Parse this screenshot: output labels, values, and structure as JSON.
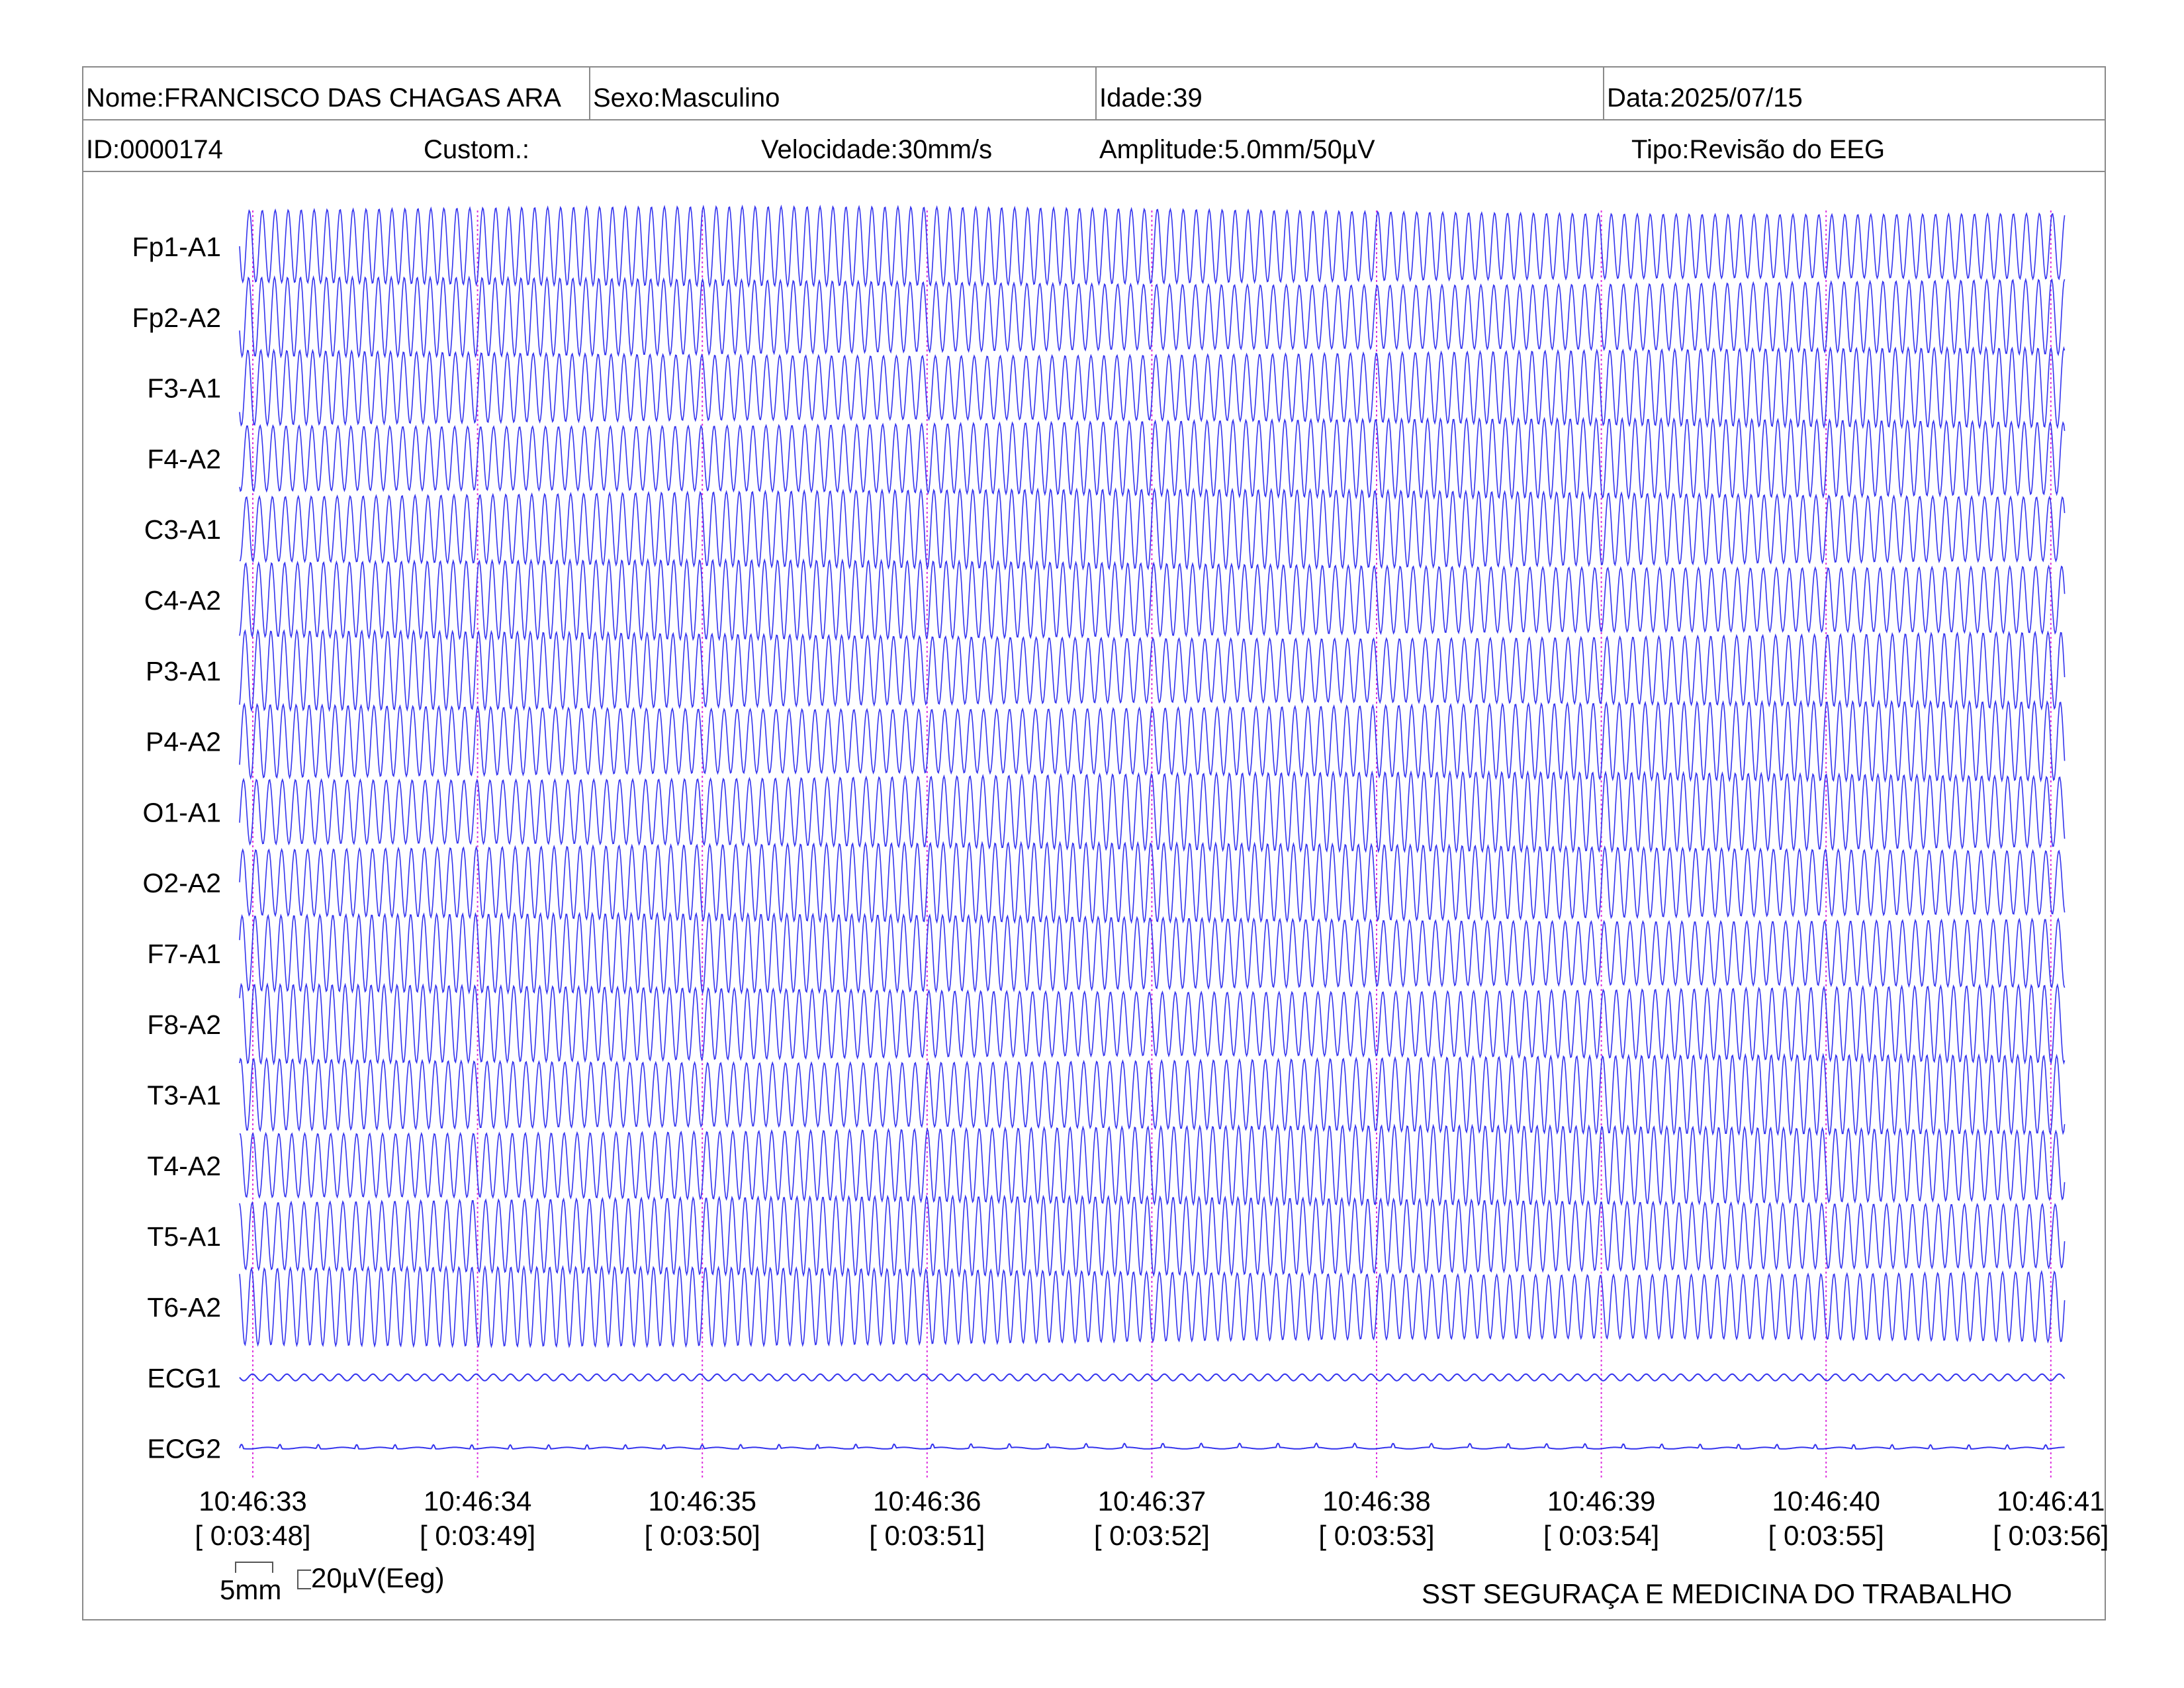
{
  "header": {
    "nome": "Nome:FRANCISCO DAS CHAGAS ARA",
    "sexo": "Sexo:Masculino",
    "idade": "Idade:39",
    "data": "Data:2025/07/15",
    "id": "ID:0000174",
    "custom": "Custom.:",
    "velocidade": "Velocidade:30mm/s",
    "amplitude": "Amplitude:5.0mm/50µV",
    "tipo": "Tipo:Revisão do EEG"
  },
  "channels": [
    {
      "label": "Fp1-A1"
    },
    {
      "label": "Fp2-A2"
    },
    {
      "label": "F3-A1"
    },
    {
      "label": "F4-A2"
    },
    {
      "label": "C3-A1"
    },
    {
      "label": "C4-A2"
    },
    {
      "label": "P3-A1"
    },
    {
      "label": "P4-A2"
    },
    {
      "label": "O1-A1"
    },
    {
      "label": "O2-A2"
    },
    {
      "label": "F7-A1"
    },
    {
      "label": "F8-A2"
    },
    {
      "label": "T3-A1"
    },
    {
      "label": "T4-A2"
    },
    {
      "label": "T5-A1"
    },
    {
      "label": "T6-A2"
    },
    {
      "label": "ECG1"
    },
    {
      "label": "ECG2"
    }
  ],
  "time_marks": [
    {
      "clock": "10:46:33",
      "elapsed": "[ 0:03:48]"
    },
    {
      "clock": "10:46:34",
      "elapsed": "[ 0:03:49]"
    },
    {
      "clock": "10:46:35",
      "elapsed": "[ 0:03:50]"
    },
    {
      "clock": "10:46:36",
      "elapsed": "[ 0:03:51]"
    },
    {
      "clock": "10:46:37",
      "elapsed": "[ 0:03:52]"
    },
    {
      "clock": "10:46:38",
      "elapsed": "[ 0:03:53]"
    },
    {
      "clock": "10:46:39",
      "elapsed": "[ 0:03:54]"
    },
    {
      "clock": "10:46:40",
      "elapsed": "[ 0:03:55]"
    },
    {
      "clock": "10:46:41",
      "elapsed": "[ 0:03:56]"
    }
  ],
  "scale": {
    "horizontal": "5mm",
    "vertical": "20µV(Eeg)"
  },
  "footer": {
    "company": "SST SEGURAÇA E MEDICINA DO TRABALHO"
  },
  "colors": {
    "trace": "#3333ee",
    "time_marker": "#dd33dd",
    "border": "#8a8a8a"
  }
}
